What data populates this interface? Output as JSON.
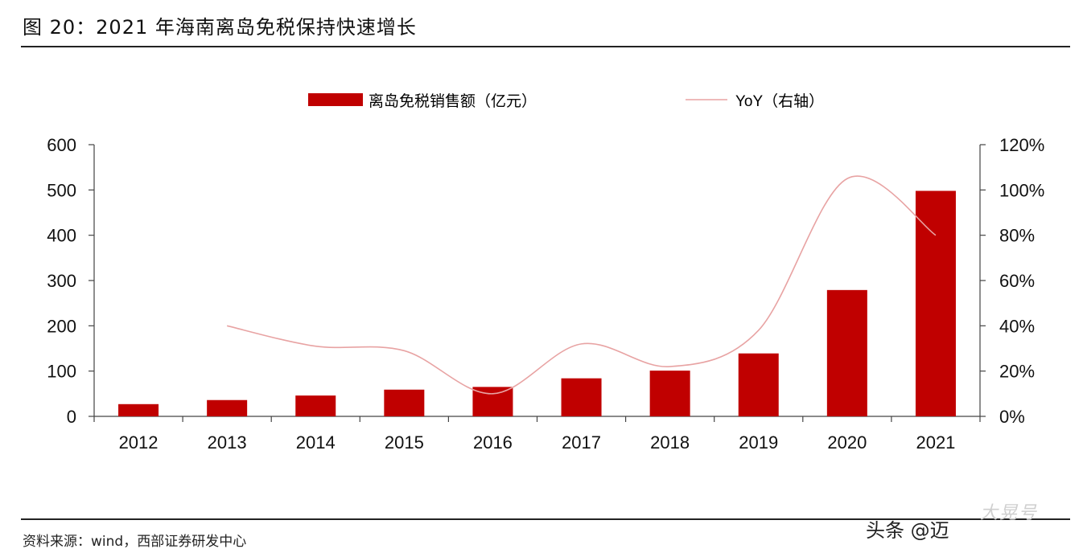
{
  "title": "图 20：2021 年海南离岛免税保持快速增长",
  "source": "资料来源：wind，西部证券研发中心",
  "watermark": "头条 @迈",
  "watermark_overlay": "大晃号",
  "chart_data": {
    "type": "bar",
    "categories": [
      "2012",
      "2013",
      "2014",
      "2015",
      "2016",
      "2017",
      "2018",
      "2019",
      "2020",
      "2021"
    ],
    "series": [
      {
        "name": "离岛免税销售额（亿元）",
        "type": "bar",
        "axis": "left",
        "color": "#c00000",
        "values": [
          27,
          36,
          46,
          59,
          65,
          84,
          101,
          139,
          279,
          498
        ]
      },
      {
        "name": "YoY（右轴）",
        "type": "line",
        "axis": "right",
        "color": "#e8a3a3",
        "values": [
          null,
          0.4,
          0.31,
          0.29,
          0.1,
          0.32,
          0.22,
          0.38,
          1.05,
          0.8
        ]
      }
    ],
    "ylim": [
      0,
      600
    ],
    "yticks": [
      "0",
      "100",
      "200",
      "300",
      "400",
      "500",
      "600"
    ],
    "y2lim": [
      0,
      1.2
    ],
    "y2ticks": [
      "0%",
      "20%",
      "40%",
      "60%",
      "80%",
      "100%",
      "120%"
    ],
    "legend": "top-center",
    "grid": false
  }
}
